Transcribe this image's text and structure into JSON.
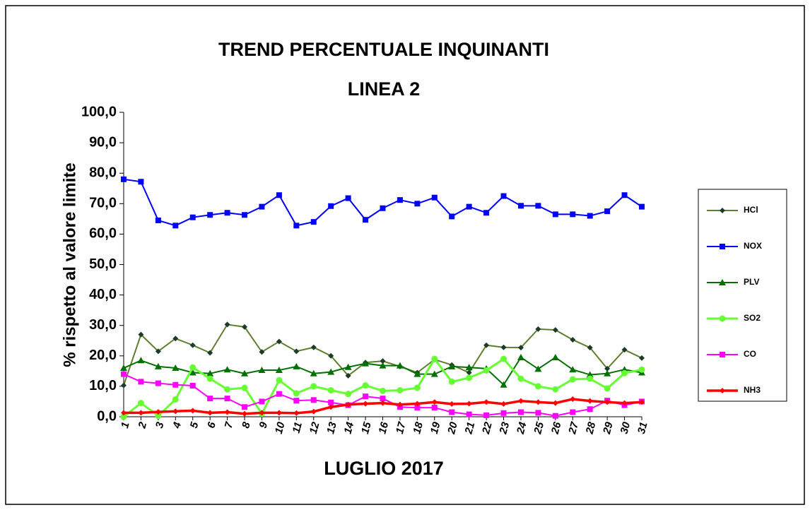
{
  "chart_data": {
    "type": "line",
    "title": "TREND PERCENTUALE INQUINANTI",
    "subtitle": "LINEA 2",
    "x_label": "LUGLIO 2017",
    "y_label": "% rispetto al valore limite",
    "categories": [
      "1",
      "2",
      "3",
      "4",
      "5",
      "6",
      "7",
      "8",
      "9",
      "10",
      "11",
      "12",
      "13",
      "14",
      "15",
      "16",
      "17",
      "18",
      "19",
      "20",
      "21",
      "22",
      "23",
      "24",
      "25",
      "26",
      "27",
      "28",
      "29",
      "30",
      "31"
    ],
    "ylim": [
      0,
      100
    ],
    "yticks": [
      {
        "value": 0,
        "label": "0,0"
      },
      {
        "value": 10,
        "label": "10,0"
      },
      {
        "value": 20,
        "label": "20,0"
      },
      {
        "value": 30,
        "label": "30,0"
      },
      {
        "value": 40,
        "label": "40,0"
      },
      {
        "value": 50,
        "label": "50,0"
      },
      {
        "value": 60,
        "label": "60,0"
      },
      {
        "value": 70,
        "label": "70,0"
      },
      {
        "value": 80,
        "label": "80,0"
      },
      {
        "value": 90,
        "label": "90,0"
      },
      {
        "value": 100,
        "label": "100,0"
      }
    ],
    "legend": "right",
    "series": [
      {
        "name": "HCl",
        "color": "#5f7f2f",
        "marker": "diamond",
        "values": [
          10.3,
          27,
          21.5,
          25.7,
          23.5,
          21,
          30.3,
          29.5,
          21.3,
          24.7,
          21.5,
          22.8,
          20,
          13.5,
          17.8,
          18.3,
          16.5,
          14.5,
          18.8,
          17,
          14.5,
          23.5,
          22.8,
          22.7,
          28.8,
          28.5,
          25.3,
          22.7,
          15.8,
          22,
          19.3
        ]
      },
      {
        "name": "NOX",
        "color": "#0000ff",
        "marker": "square",
        "values": [
          78,
          77.2,
          64.5,
          62.8,
          65.5,
          66.3,
          67,
          66.3,
          69,
          72.8,
          62.8,
          64,
          69.2,
          71.8,
          64.7,
          68.5,
          71.2,
          70,
          72,
          65.8,
          69,
          67,
          72.5,
          69.3,
          69.3,
          66.5,
          66.5,
          66,
          67.5,
          72.8,
          69
        ]
      },
      {
        "name": "PLV",
        "color": "#007000",
        "marker": "triangle",
        "values": [
          16,
          18.5,
          16.5,
          16,
          14.5,
          14.2,
          15.5,
          14.2,
          15.3,
          15.3,
          16.5,
          14.2,
          14.7,
          16.3,
          17.5,
          16.8,
          16.8,
          14,
          14,
          16.5,
          16.2,
          15.8,
          10.5,
          19.5,
          15.7,
          19.5,
          15.5,
          13.8,
          14.2,
          15.5,
          14.5
        ]
      },
      {
        "name": "SO2",
        "color": "#66ff33",
        "marker": "circle",
        "values": [
          0,
          4.5,
          0.3,
          5.7,
          16.2,
          12.5,
          9,
          9.5,
          1,
          12,
          7.7,
          10,
          8.7,
          7.5,
          10.3,
          8.5,
          8.7,
          9.5,
          19,
          11.5,
          12.8,
          15.2,
          19,
          12.5,
          10,
          9,
          12.3,
          12.5,
          9.3,
          14.3,
          15.5
        ]
      },
      {
        "name": "CO",
        "color": "#ff00ff",
        "marker": "square",
        "values": [
          14,
          11.5,
          11,
          10.5,
          10.2,
          6,
          6,
          3.2,
          5,
          7.5,
          5.3,
          5.5,
          4.7,
          3.8,
          6.7,
          6,
          3.2,
          3,
          3,
          1.5,
          0.8,
          0.5,
          1.2,
          1.5,
          1.3,
          0.3,
          1.5,
          2.5,
          5.3,
          3.8,
          5
        ]
      },
      {
        "name": "NH3",
        "color": "#ff0000",
        "marker": "diamond",
        "values": [
          1.3,
          1.3,
          1.6,
          1.8,
          2,
          1.3,
          1.5,
          1,
          1.3,
          1.3,
          1.2,
          1.7,
          3.2,
          4,
          4.3,
          4.5,
          4,
          4.3,
          4.8,
          4.2,
          4.3,
          4.8,
          4.2,
          5.2,
          4.8,
          4.5,
          5.8,
          5.2,
          4.8,
          4.5,
          4.8
        ]
      }
    ]
  }
}
